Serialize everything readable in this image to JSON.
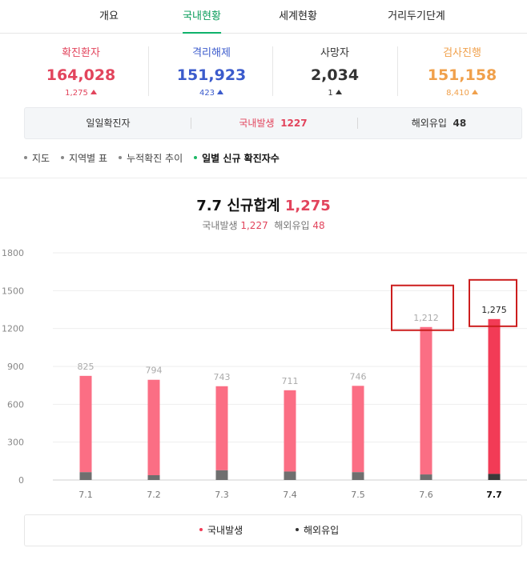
{
  "tabs": [
    {
      "label": "개요",
      "active": false
    },
    {
      "label": "국내현황",
      "active": true
    },
    {
      "label": "세계현황",
      "active": false
    },
    {
      "label": "거리두기단계",
      "active": false
    }
  ],
  "stats": [
    {
      "label": "확진환자",
      "value": "164,028",
      "change": "1,275",
      "color": "#e2445c",
      "change_color": "#e2445c"
    },
    {
      "label": "격리해제",
      "value": "151,923",
      "change": "423",
      "color": "#3b5bcc",
      "change_color": "#3b5bcc"
    },
    {
      "label": "사망자",
      "value": "2,034",
      "change": "1",
      "color": "#333333",
      "change_color": "#333333"
    },
    {
      "label": "검사진행",
      "value": "151,158",
      "change": "8,410",
      "color": "#f0a04b",
      "change_color": "#f0a04b"
    }
  ],
  "subbar": {
    "daily_label": "일일확진자",
    "domestic_label": "국내발생",
    "domestic_value": "1227",
    "overseas_label": "해외유입",
    "overseas_value": "48"
  },
  "views": [
    {
      "label": "지도",
      "active": false
    },
    {
      "label": "지역별 표",
      "active": false
    },
    {
      "label": "누적확진 추이",
      "active": false
    },
    {
      "label": "일별 신규 확진자수",
      "active": true
    }
  ],
  "chart_header": {
    "title_prefix": "7.7 신규합계",
    "title_value": "1,275",
    "domestic_label": "국내발생",
    "domestic_value": "1,227",
    "overseas_label": "해외유입",
    "overseas_value": "48"
  },
  "chart_data": {
    "type": "bar",
    "stacked": true,
    "categories": [
      "7.1",
      "7.2",
      "7.3",
      "7.4",
      "7.5",
      "7.6",
      "7.7"
    ],
    "totals": [
      825,
      794,
      743,
      711,
      746,
      1212,
      1275
    ],
    "total_labels": [
      "825",
      "794",
      "743",
      "711",
      "746",
      "1,212",
      "1,275"
    ],
    "series": [
      {
        "name": "국내발생",
        "values": [
          763,
          756,
          666,
          644,
          684,
          1168,
          1227
        ]
      },
      {
        "name": "해외유입",
        "values": [
          62,
          38,
          77,
          67,
          62,
          44,
          48
        ]
      }
    ],
    "ylim": [
      0,
      1800
    ],
    "yticks": [
      0,
      300,
      600,
      900,
      1200,
      1500,
      1800
    ],
    "highlighted_categories": [
      "7.6",
      "7.7"
    ],
    "grid": true,
    "colors": {
      "domestic": "#fb6e84",
      "overseas": "#6f6f6f",
      "domestic_current": "#f23b56",
      "overseas_current": "#3a3a3a",
      "highlight_box": "#cc1e1e"
    }
  },
  "legend": [
    {
      "label": "국내발생",
      "color": "#f23b56"
    },
    {
      "label": "해외유입",
      "color": "#333333"
    }
  ]
}
